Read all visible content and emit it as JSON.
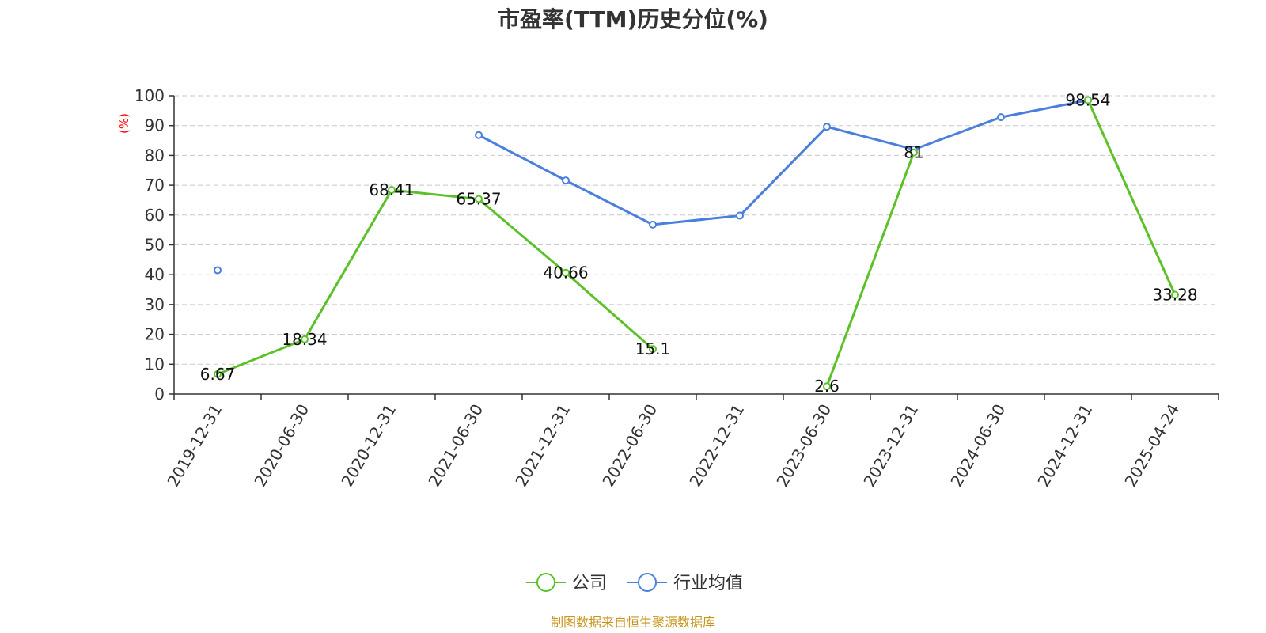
{
  "chart_data": {
    "type": "line",
    "title": "市盈率(TTM)历史分位(%)",
    "ylabel": "(%)",
    "ylim": [
      0,
      100
    ],
    "yticks": [
      0,
      10,
      20,
      30,
      40,
      50,
      60,
      70,
      80,
      90,
      100
    ],
    "grid": true,
    "legend_position": "bottom-center",
    "categories": [
      "2019-12-31",
      "2020-06-30",
      "2020-12-31",
      "2021-06-30",
      "2021-12-31",
      "2022-06-30",
      "2022-12-31",
      "2023-06-30",
      "2023-12-31",
      "2024-06-30",
      "2024-12-31",
      "2025-04-24"
    ],
    "series": [
      {
        "name": "公司",
        "color": "#5cc129",
        "values": [
          6.67,
          18.34,
          68.41,
          65.37,
          40.66,
          15.1,
          null,
          2.6,
          81,
          null,
          98.54,
          33.28
        ],
        "labels": [
          "6.67",
          "18.34",
          "68.41",
          "65.37",
          "40.66",
          "15.1",
          "",
          "2.6",
          "81",
          "",
          "98.54",
          "33.28"
        ]
      },
      {
        "name": "行业均值",
        "color": "#4a7fdc",
        "values": [
          41.5,
          null,
          null,
          86.8,
          71.6,
          56.8,
          59.8,
          89.6,
          82.0,
          92.8,
          98.5,
          null
        ],
        "labels": []
      }
    ]
  },
  "source": "制图数据来自恒生聚源数据库"
}
